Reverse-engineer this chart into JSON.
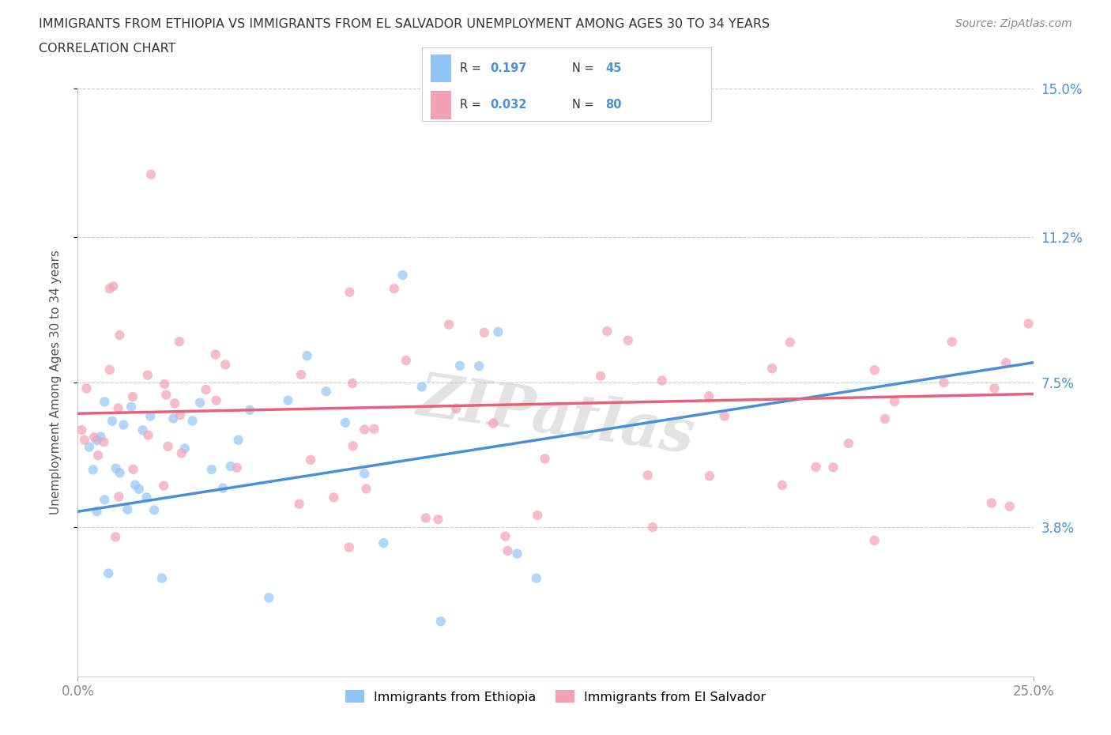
{
  "title_line1": "IMMIGRANTS FROM ETHIOPIA VS IMMIGRANTS FROM EL SALVADOR UNEMPLOYMENT AMONG AGES 30 TO 34 YEARS",
  "title_line2": "CORRELATION CHART",
  "source_text": "Source: ZipAtlas.com",
  "ylabel": "Unemployment Among Ages 30 to 34 years",
  "xlim": [
    0.0,
    0.25
  ],
  "ylim": [
    0.0,
    0.15
  ],
  "xtick_positions": [
    0.0,
    0.25
  ],
  "xtick_labels": [
    "0.0%",
    "25.0%"
  ],
  "ytick_values": [
    0.038,
    0.075,
    0.112,
    0.15
  ],
  "ytick_labels": [
    "3.8%",
    "7.5%",
    "11.2%",
    "15.0%"
  ],
  "watermark": "ZIPatlas",
  "ethiopia_color": "#92c5f7",
  "el_salvador_color": "#f4a0b5",
  "ethiopia_trend_color": "#4a90d9",
  "el_salvador_trend_color": "#e8607a",
  "R_ethiopia": "0.197",
  "N_ethiopia": "45",
  "R_el_salvador": "0.032",
  "N_el_salvador": "80",
  "legend_label_ethiopia": "Immigrants from Ethiopia",
  "legend_label_el_salvador": "Immigrants from El Salvador",
  "title_fontsize": 12,
  "axis_label_color": "#555555",
  "tick_label_color": "#4a90d9",
  "grid_color": "#cccccc",
  "background_color": "#ffffff"
}
